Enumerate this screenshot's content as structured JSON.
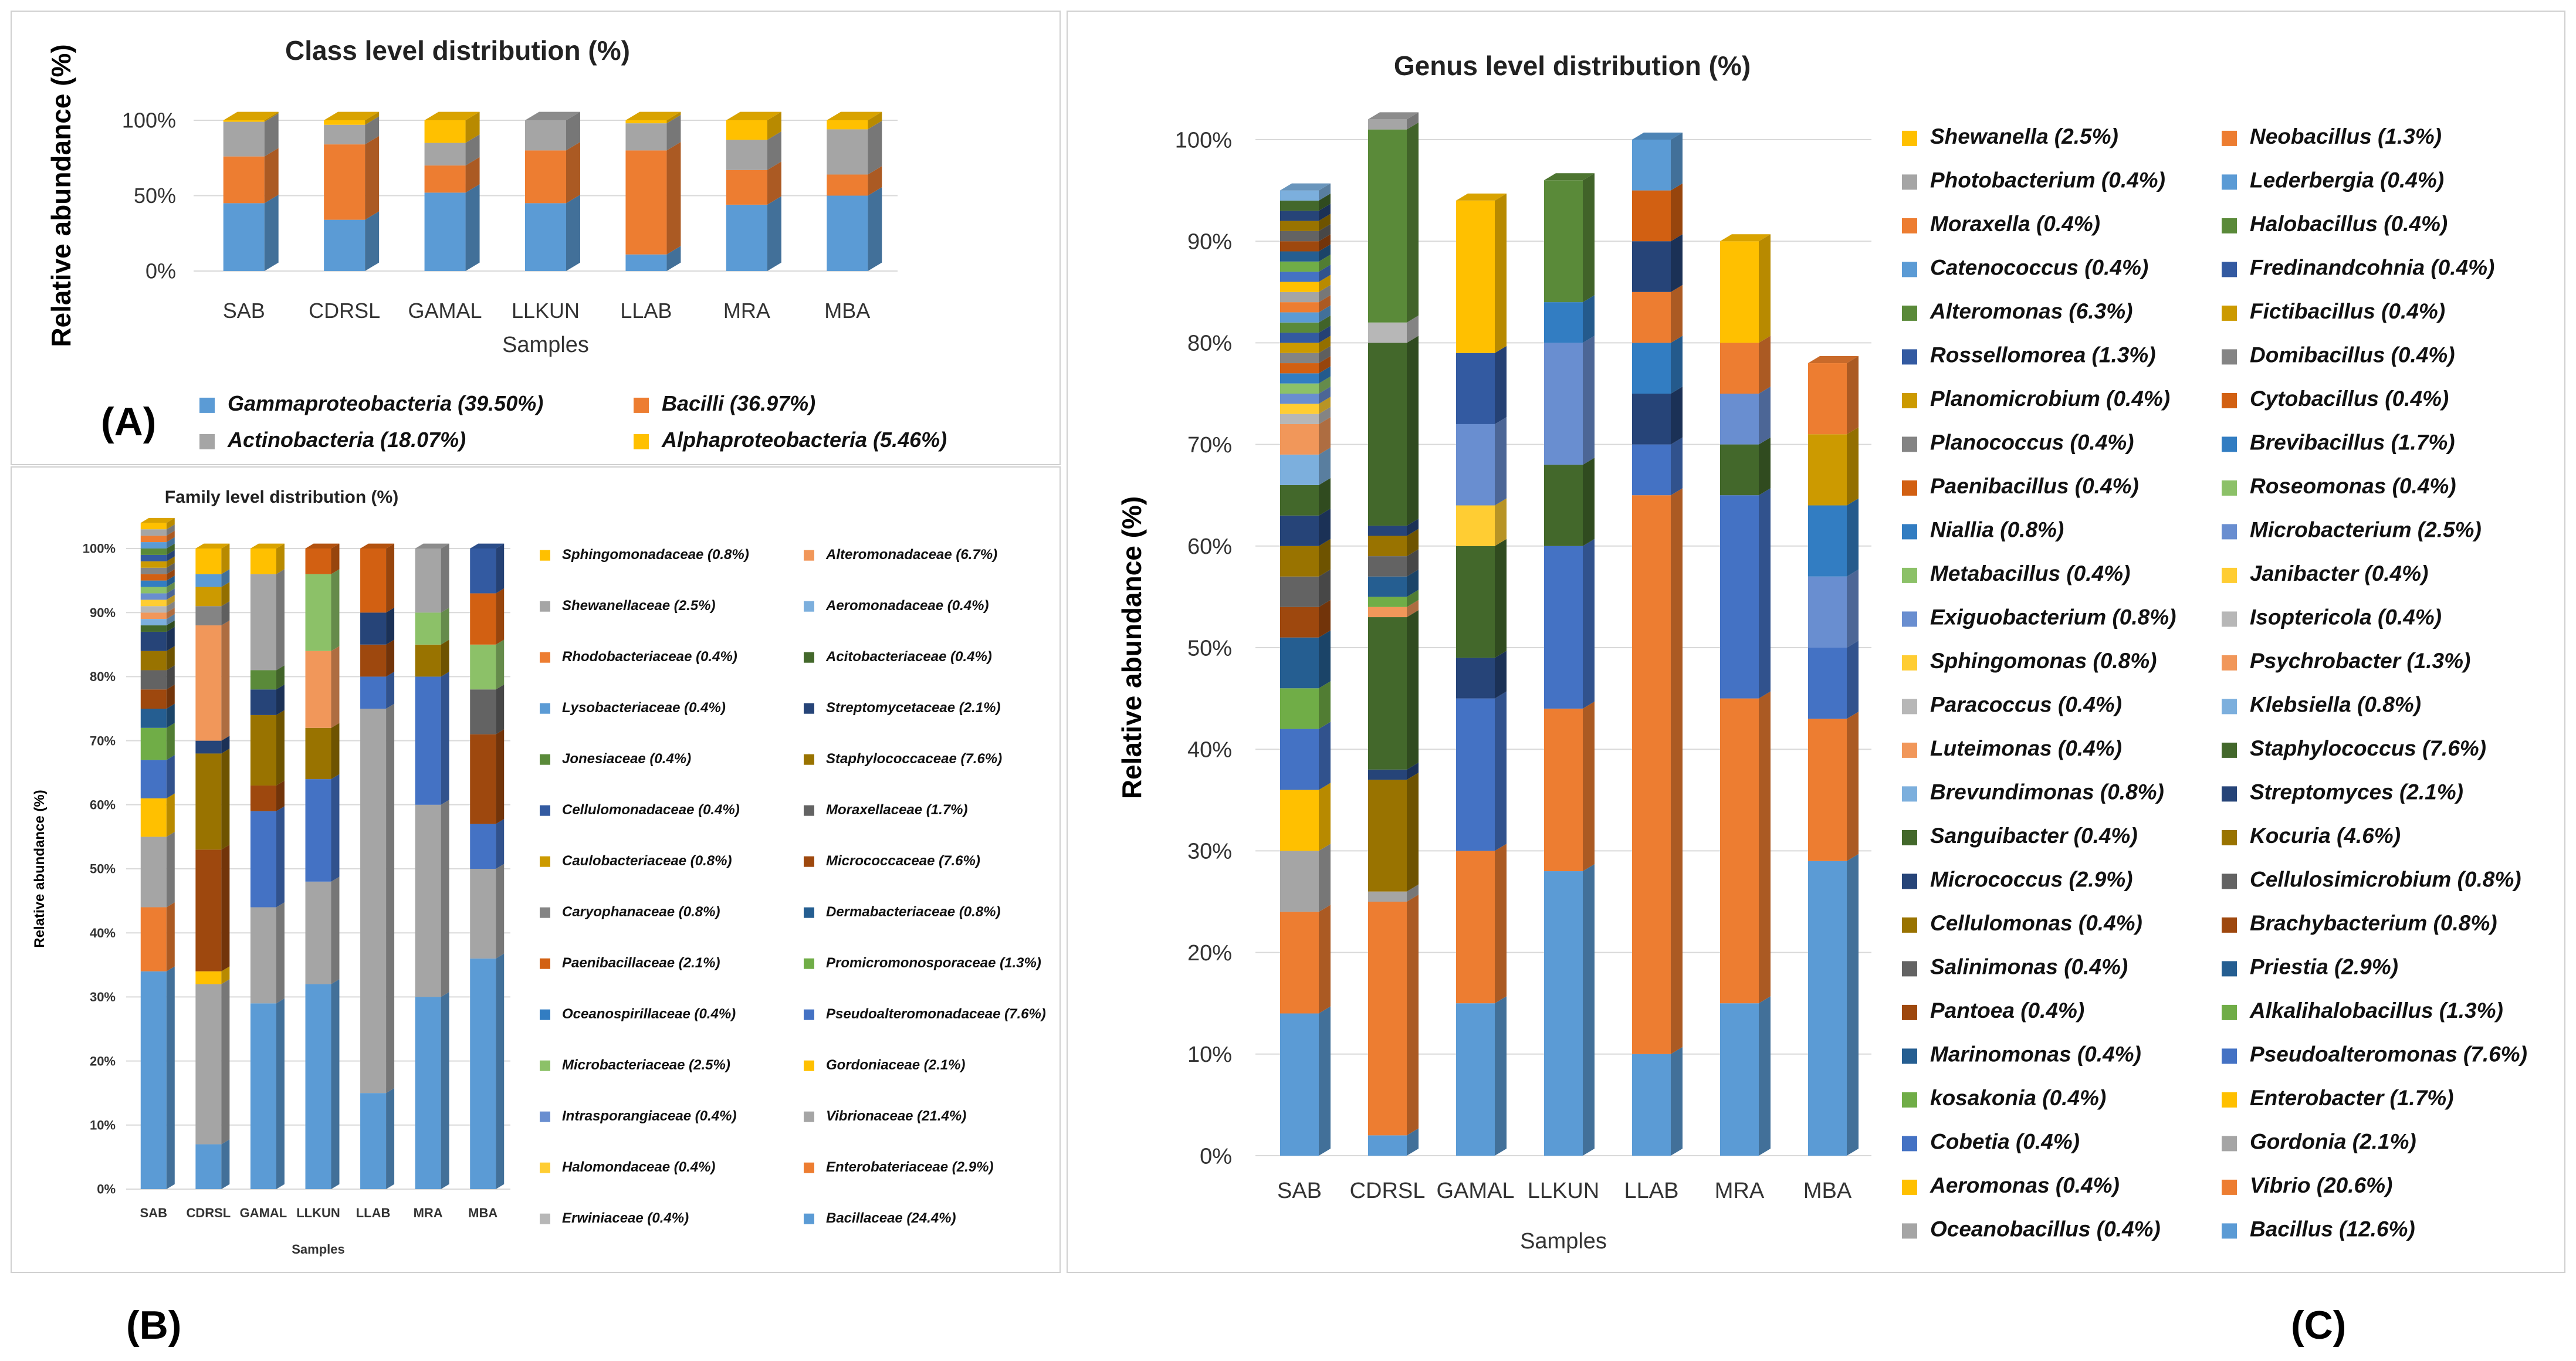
{
  "labels": {
    "a": "(A)",
    "b": "(B)",
    "c": "(C)"
  },
  "palette": [
    "#5b9bd5",
    "#ed7d31",
    "#a5a5a5",
    "#ffc000",
    "#4472c4",
    "#70ad47",
    "#255e91",
    "#9e480e",
    "#636363",
    "#997300",
    "#264478",
    "#43682b",
    "#7cafdd",
    "#f1975a",
    "#b7b7b7",
    "#ffcd33",
    "#698ed0",
    "#8cc168",
    "#327dc2",
    "#d26012",
    "#848484",
    "#cc9a00",
    "#335aa1",
    "#5a8a39"
  ],
  "chart_data": [
    {
      "id": "class",
      "type": "bar",
      "stacked": true,
      "title": "Class level distribution (%)",
      "xlabel": "Samples",
      "ylabel": "Relative abundance (%)",
      "yticks": [
        "0%",
        "50%",
        "100%"
      ],
      "ylim": [
        0,
        100
      ],
      "categories": [
        "SAB",
        "CDRSL",
        "GAMAL",
        "LLKUN",
        "LLAB",
        "MRA",
        "MBA"
      ],
      "series": [
        {
          "name": "Gammaproteobacteria (39.50%)",
          "color": "#5b9bd5",
          "values": [
            45,
            34,
            52,
            45,
            11,
            44,
            50
          ]
        },
        {
          "name": "Bacilli (36.97%)",
          "color": "#ed7d31",
          "values": [
            31,
            50,
            18,
            35,
            69,
            23,
            14
          ]
        },
        {
          "name": "Actinobacteria (18.07%)",
          "color": "#a5a5a5",
          "values": [
            23,
            13,
            15,
            20,
            18,
            20,
            30
          ]
        },
        {
          "name": "Alphaproteobacteria (5.46%)",
          "color": "#ffc000",
          "values": [
            1,
            3,
            15,
            0,
            2,
            13,
            6
          ]
        }
      ]
    },
    {
      "id": "family",
      "type": "bar",
      "stacked": true,
      "title": "Family level distribution (%)",
      "xlabel": "Samples",
      "ylabel": "Relative abundance (%)",
      "yticks": [
        "0%",
        "10%",
        "20%",
        "30%",
        "40%",
        "50%",
        "60%",
        "70%",
        "80%",
        "90%",
        "100%"
      ],
      "ylim": [
        0,
        100
      ],
      "categories": [
        "SAB",
        "CDRSL",
        "GAMAL",
        "LLKUN",
        "LLAB",
        "MRA",
        "MBA"
      ],
      "series": [
        {
          "name": "Bacillaceae (24.4%)",
          "values": [
            34,
            7,
            29,
            32,
            15,
            30,
            36
          ]
        },
        {
          "name": "Enterobateriaceae (2.9%)",
          "values": [
            10,
            0,
            0,
            0,
            0,
            0,
            0
          ]
        },
        {
          "name": "Vibrionaceae (21.4%)",
          "values": [
            11,
            25,
            15,
            16,
            60,
            30,
            14
          ]
        },
        {
          "name": "Gordoniaceae (2.1%)",
          "values": [
            6,
            2,
            0,
            0,
            0,
            0,
            0
          ]
        },
        {
          "name": "Pseudoalteromonadaceae (7.6%)",
          "values": [
            6,
            0,
            15,
            16,
            5,
            20,
            7
          ]
        },
        {
          "name": "Promicromonosporaceae (1.3%)",
          "values": [
            5,
            0,
            0,
            0,
            0,
            0,
            0
          ]
        },
        {
          "name": "Dermabacteriaceae (0.8%)",
          "values": [
            3,
            0,
            0,
            0,
            0,
            0,
            0
          ]
        },
        {
          "name": "Micrococcaceae (7.6%)",
          "values": [
            3,
            19,
            4,
            0,
            5,
            0,
            14
          ]
        },
        {
          "name": "Moraxellaceae (1.7%)",
          "values": [
            3,
            0,
            0,
            0,
            0,
            0,
            7
          ]
        },
        {
          "name": "Staphylococcaceae (7.6%)",
          "values": [
            3,
            15,
            11,
            8,
            0,
            5,
            0
          ]
        },
        {
          "name": "Streptomycetaceae (2.1%)",
          "values": [
            3,
            2,
            4,
            0,
            5,
            0,
            0
          ]
        },
        {
          "name": "Acitobacteriaceae (0.4%)",
          "values": [
            1,
            0,
            0,
            0,
            0,
            0,
            0
          ]
        },
        {
          "name": "Aeromonadaceae (0.4%)",
          "values": [
            1,
            0,
            0,
            0,
            0,
            0,
            0
          ]
        },
        {
          "name": "Alteromonadaceae (6.7%)",
          "values": [
            1,
            18,
            0,
            12,
            0,
            0,
            0
          ]
        },
        {
          "name": "Erwiniaceae (0.4%)",
          "values": [
            1,
            0,
            0,
            0,
            0,
            0,
            0
          ]
        },
        {
          "name": "Halomondaceae (0.4%)",
          "values": [
            1,
            0,
            0,
            0,
            0,
            0,
            0
          ]
        },
        {
          "name": "Intrasporangiaceae (0.4%)",
          "values": [
            1,
            0,
            0,
            0,
            0,
            0,
            0
          ]
        },
        {
          "name": "Microbacteriaceae (2.5%)",
          "values": [
            1,
            0,
            0,
            12,
            0,
            5,
            7
          ]
        },
        {
          "name": "Oceanospirillaceae (0.4%)",
          "values": [
            1,
            0,
            0,
            0,
            0,
            0,
            0
          ]
        },
        {
          "name": "Paenibacillaceae (2.1%)",
          "values": [
            1,
            0,
            0,
            4,
            10,
            0,
            8
          ]
        },
        {
          "name": "Caryophanaceae (0.8%)",
          "values": [
            1,
            3,
            0,
            0,
            0,
            0,
            0
          ]
        },
        {
          "name": "Caulobacteriaceae (0.8%)",
          "values": [
            1,
            3,
            0,
            0,
            0,
            0,
            0
          ]
        },
        {
          "name": "Cellulomonadaceae (0.4%)",
          "values": [
            1,
            0,
            0,
            0,
            0,
            0,
            7
          ]
        },
        {
          "name": "Jonesiaceae (0.4%)",
          "values": [
            1,
            0,
            3,
            0,
            0,
            0,
            0
          ]
        },
        {
          "name": "Lysobacteriaceae (0.4%)",
          "values": [
            1,
            2,
            0,
            0,
            0,
            0,
            0
          ]
        },
        {
          "name": "Rhodobacteriaceae (0.4%)",
          "values": [
            1,
            0,
            0,
            0,
            0,
            0,
            0
          ]
        },
        {
          "name": "Shewanellaceae (2.5%)",
          "values": [
            1,
            0,
            15,
            0,
            0,
            10,
            0
          ]
        },
        {
          "name": "Sphingomonadaceae (0.8%)",
          "values": [
            1,
            4,
            4,
            0,
            0,
            0,
            0
          ]
        }
      ]
    },
    {
      "id": "genus",
      "type": "bar",
      "stacked": true,
      "title": "Genus level distribution (%)",
      "xlabel": "Samples",
      "ylabel": "Relative abundance (%)",
      "yticks": [
        "0%",
        "10%",
        "20%",
        "30%",
        "40%",
        "50%",
        "60%",
        "70%",
        "80%",
        "90%",
        "100%"
      ],
      "ylim": [
        0,
        100
      ],
      "categories": [
        "SAB",
        "CDRSL",
        "GAMAL",
        "LLKUN",
        "LLAB",
        "MRA",
        "MBA"
      ],
      "series": [
        {
          "name": "Bacillus (12.6%)",
          "values": [
            14,
            2,
            15,
            28,
            10,
            15,
            29
          ]
        },
        {
          "name": "Vibrio (20.6%)",
          "values": [
            10,
            23,
            15,
            16,
            55,
            30,
            14
          ]
        },
        {
          "name": "Gordonia (2.1%)",
          "values": [
            6,
            1,
            0,
            0,
            0,
            0,
            0
          ]
        },
        {
          "name": "Enterobacter (1.7%)",
          "values": [
            6,
            0,
            0,
            0,
            0,
            0,
            0
          ]
        },
        {
          "name": "Pseudoalteromonas (7.6%)",
          "values": [
            6,
            0,
            15,
            16,
            5,
            20,
            7
          ]
        },
        {
          "name": "Alkalihalobacillus (1.3%)",
          "values": [
            4,
            0,
            0,
            0,
            0,
            0,
            0
          ]
        },
        {
          "name": "Priestia (2.9%)",
          "values": [
            5,
            0,
            0,
            0,
            0,
            0,
            0
          ]
        },
        {
          "name": "Brachybacterium (0.8%)",
          "values": [
            3,
            0,
            0,
            0,
            0,
            0,
            0
          ]
        },
        {
          "name": "Cellulosimicrobium (0.8%)",
          "values": [
            3,
            0,
            0,
            0,
            0,
            0,
            0
          ]
        },
        {
          "name": "Kocuria (4.6%)",
          "values": [
            3,
            11,
            0,
            0,
            0,
            0,
            0
          ]
        },
        {
          "name": "Streptomyces (2.1%)",
          "values": [
            3,
            1,
            4,
            0,
            5,
            0,
            0
          ]
        },
        {
          "name": "Staphylococcus (7.6%)",
          "values": [
            3,
            15,
            11,
            8,
            0,
            5,
            0
          ]
        },
        {
          "name": "Klebsiella (0.8%)",
          "values": [
            3,
            0,
            0,
            0,
            0,
            0,
            0
          ]
        },
        {
          "name": "Psychrobacter (1.3%)",
          "values": [
            3,
            1,
            0,
            0,
            0,
            0,
            0
          ]
        },
        {
          "name": "Isoptericola (0.4%)",
          "values": [
            1,
            0,
            0,
            0,
            0,
            0,
            0
          ]
        },
        {
          "name": "Janibacter (0.4%)",
          "values": [
            1,
            0,
            0,
            0,
            0,
            0,
            0
          ]
        },
        {
          "name": "Microbacterium (2.5%)",
          "values": [
            1,
            0,
            0,
            12,
            0,
            5,
            7
          ]
        },
        {
          "name": "Roseomonas (0.4%)",
          "values": [
            1,
            0,
            0,
            0,
            0,
            0,
            0
          ]
        },
        {
          "name": "Brevibacillus (1.7%)",
          "values": [
            1,
            0,
            0,
            0,
            5,
            0,
            7
          ]
        },
        {
          "name": "Cytobacillus (0.4%)",
          "values": [
            1,
            0,
            0,
            0,
            0,
            0,
            0
          ]
        },
        {
          "name": "Domibacillus (0.4%)",
          "values": [
            1,
            0,
            0,
            0,
            0,
            0,
            0
          ]
        },
        {
          "name": "Fictibacillus (0.4%)",
          "values": [
            1,
            0,
            0,
            0,
            0,
            0,
            0
          ]
        },
        {
          "name": "Fredinandcohnia (0.4%)",
          "values": [
            1,
            0,
            0,
            0,
            0,
            0,
            0
          ]
        },
        {
          "name": "Halobacillus (0.4%)",
          "values": [
            1,
            0,
            0,
            0,
            0,
            0,
            0
          ]
        },
        {
          "name": "Lederbergia (0.4%)",
          "values": [
            1,
            0,
            0,
            0,
            0,
            0,
            0
          ]
        },
        {
          "name": "Neobacillus (1.3%)",
          "values": [
            1,
            0,
            0,
            0,
            5,
            0,
            0
          ]
        },
        {
          "name": "Oceanobacillus (0.4%)",
          "values": [
            1,
            0,
            0,
            0,
            0,
            0,
            0
          ]
        },
        {
          "name": "Aeromonas (0.4%)",
          "values": [
            1,
            0,
            0,
            0,
            0,
            0,
            0
          ]
        },
        {
          "name": "Cobetia (0.4%)",
          "values": [
            1,
            0,
            0,
            0,
            0,
            0,
            0
          ]
        },
        {
          "name": "kosakonia (0.4%)",
          "values": [
            1,
            1,
            0,
            0,
            0,
            0,
            0
          ]
        },
        {
          "name": "Marinomonas (0.4%)",
          "values": [
            1,
            2,
            0,
            0,
            0,
            0,
            0
          ]
        },
        {
          "name": "Pantoea (0.4%)",
          "values": [
            1,
            0,
            0,
            0,
            0,
            0,
            0
          ]
        },
        {
          "name": "Salinimonas (0.4%)",
          "values": [
            1,
            2,
            0,
            0,
            0,
            0,
            0
          ]
        },
        {
          "name": "Cellulomonas (0.4%)",
          "values": [
            1,
            2,
            0,
            0,
            0,
            0,
            0
          ]
        },
        {
          "name": "Micrococcus (2.9%)",
          "values": [
            1,
            1,
            0,
            0,
            5,
            0,
            0
          ]
        },
        {
          "name": "Sanguibacter (0.4%)",
          "values": [
            1,
            18,
            0,
            0,
            0,
            0,
            0
          ]
        },
        {
          "name": "Brevundimonas (0.8%)",
          "values": [
            1,
            0,
            0,
            0,
            0,
            0,
            0
          ]
        },
        {
          "name": "Luteimonas (0.4%)",
          "values": [
            0,
            0,
            0,
            0,
            0,
            0,
            0
          ]
        },
        {
          "name": "Paracoccus (0.4%)",
          "values": [
            0,
            2,
            0,
            0,
            0,
            0,
            0
          ]
        },
        {
          "name": "Sphingomonas (0.8%)",
          "values": [
            0,
            0,
            4,
            0,
            0,
            0,
            0
          ]
        },
        {
          "name": "Exiguobacterium (0.8%)",
          "values": [
            0,
            0,
            8,
            0,
            0,
            0,
            0
          ]
        },
        {
          "name": "Metabacillus (0.4%)",
          "values": [
            0,
            0,
            0,
            0,
            0,
            0,
            0
          ]
        },
        {
          "name": "Niallia (0.8%)",
          "values": [
            0,
            0,
            0,
            4,
            0,
            0,
            0
          ]
        },
        {
          "name": "Paenibacillus (0.4%)",
          "values": [
            0,
            0,
            0,
            0,
            5,
            0,
            0
          ]
        },
        {
          "name": "Planococcus (0.4%)",
          "values": [
            0,
            0,
            0,
            0,
            0,
            0,
            0
          ]
        },
        {
          "name": "Planomicrobium (0.4%)",
          "values": [
            0,
            0,
            0,
            0,
            0,
            0,
            7
          ]
        },
        {
          "name": "Rossellomorea (1.3%)",
          "values": [
            0,
            0,
            7,
            0,
            0,
            0,
            0
          ]
        },
        {
          "name": "Alteromonas (6.3%)",
          "values": [
            0,
            19,
            0,
            12,
            0,
            0,
            0
          ]
        },
        {
          "name": "Catenococcus (0.4%)",
          "values": [
            0,
            0,
            0,
            0,
            5,
            0,
            0
          ]
        },
        {
          "name": "Moraxella (0.4%)",
          "values": [
            0,
            0,
            0,
            0,
            0,
            5,
            7
          ]
        },
        {
          "name": "Photobacterium (0.4%)",
          "values": [
            0,
            1,
            0,
            0,
            0,
            0,
            0
          ]
        },
        {
          "name": "Shewanella (2.5%)",
          "values": [
            0,
            0,
            15,
            0,
            0,
            10,
            0
          ]
        }
      ]
    }
  ]
}
